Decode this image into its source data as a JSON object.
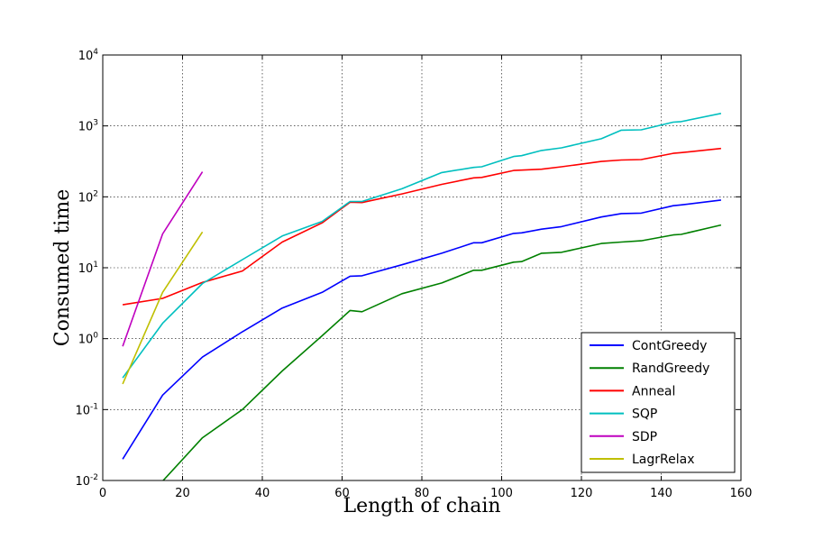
{
  "chart_data": {
    "type": "line",
    "xlabel": "Length of chain",
    "ylabel": "Consumed time",
    "xlim": [
      0,
      160
    ],
    "ylim": [
      0.01,
      10000
    ],
    "yscale": "log",
    "grid": true,
    "legend_position": "lower-right",
    "x_ticks": [
      "0",
      "20",
      "40",
      "60",
      "80",
      "100",
      "120",
      "140",
      "160"
    ],
    "y_ticks": [
      {
        "base": "10",
        "exp": "-2"
      },
      {
        "base": "10",
        "exp": "-1"
      },
      {
        "base": "10",
        "exp": "0"
      },
      {
        "base": "10",
        "exp": "1"
      },
      {
        "base": "10",
        "exp": "2"
      },
      {
        "base": "10",
        "exp": "3"
      },
      {
        "base": "10",
        "exp": "4"
      }
    ],
    "series": [
      {
        "name": "ContGreedy",
        "color": "#0000ff",
        "x": [
          5,
          15,
          25,
          35,
          45,
          55,
          62,
          65,
          75,
          85,
          93,
          95,
          103,
          105,
          110,
          115,
          125,
          130,
          135,
          143,
          145,
          155
        ],
        "y": [
          0.02,
          0.16,
          0.55,
          1.25,
          2.7,
          4.5,
          7.6,
          7.7,
          11,
          16,
          22.5,
          22.5,
          30.5,
          31,
          35,
          38,
          52,
          58,
          59,
          75,
          77,
          90
        ]
      },
      {
        "name": "RandGreedy",
        "color": "#008000",
        "x": [
          15,
          25,
          35,
          45,
          55,
          62,
          65,
          75,
          85,
          93,
          95,
          103,
          105,
          110,
          115,
          125,
          130,
          135,
          143,
          145,
          155
        ],
        "y": [
          0.0098,
          0.04,
          0.1,
          0.35,
          1.1,
          2.5,
          2.4,
          4.3,
          6.1,
          9.2,
          9.2,
          12,
          12.2,
          16,
          16.5,
          22,
          23,
          24,
          29,
          29.5,
          40
        ]
      },
      {
        "name": "Anneal",
        "color": "#ff0000",
        "x": [
          5,
          15,
          25,
          35,
          45,
          55,
          62,
          65,
          75,
          85,
          93,
          95,
          103,
          105,
          110,
          115,
          125,
          130,
          135,
          143,
          145,
          155
        ],
        "y": [
          3,
          3.7,
          6.2,
          9,
          23,
          43,
          84,
          83,
          110,
          150,
          185,
          188,
          235,
          238,
          245,
          265,
          315,
          330,
          335,
          410,
          420,
          480
        ]
      },
      {
        "name": "SQP",
        "color": "#00bfbf",
        "x": [
          5,
          15,
          25,
          35,
          45,
          55,
          62,
          65,
          75,
          85,
          93,
          95,
          103,
          105,
          110,
          115,
          125,
          130,
          135,
          143,
          145,
          155
        ],
        "y": [
          0.28,
          1.65,
          6,
          13,
          28,
          45,
          86,
          86,
          130,
          220,
          260,
          265,
          370,
          380,
          450,
          490,
          660,
          870,
          880,
          1130,
          1150,
          1500
        ]
      },
      {
        "name": "SDP",
        "color": "#bf00bf",
        "x": [
          5,
          15,
          25
        ],
        "y": [
          0.78,
          30,
          225
        ]
      },
      {
        "name": "LagrRelax",
        "color": "#bfbf00",
        "x": [
          5,
          15,
          25
        ],
        "y": [
          0.23,
          4.5,
          32
        ]
      }
    ]
  }
}
